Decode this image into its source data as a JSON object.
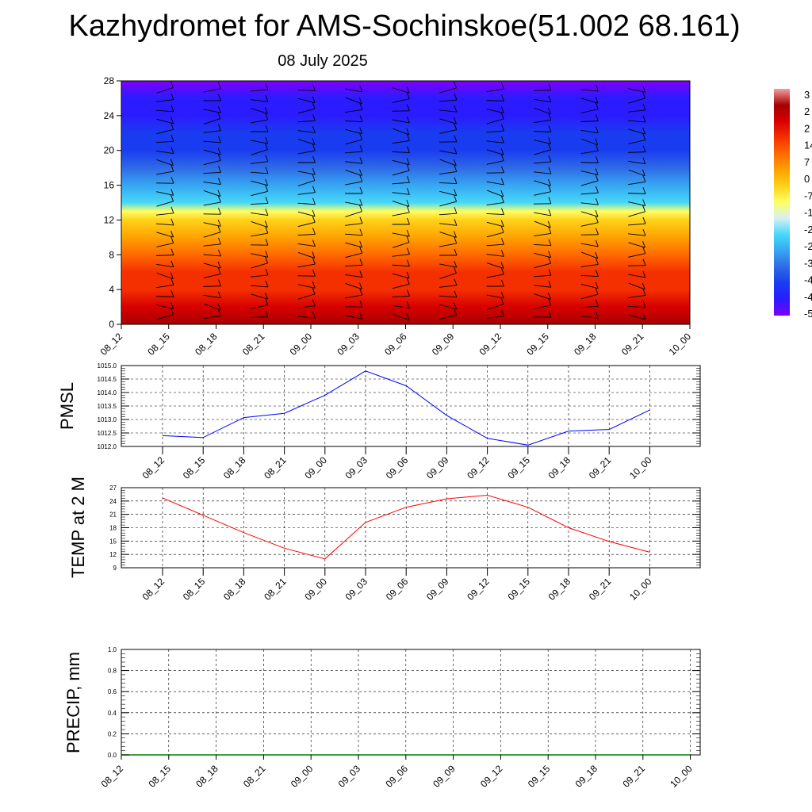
{
  "title": "Kazhydromet for AMS-Sochinskoe(51.002 68.161)",
  "subtitle": "08 July 2025",
  "colors": {
    "pmsl_line": "#0000ff",
    "temp_line": "#ff0000",
    "precip_line": "#008000",
    "wind_barb": "#000000"
  },
  "chart_data": [
    {
      "type": "heatmap",
      "name": "vertical-profile",
      "y_ticks": [
        0,
        4,
        8,
        12,
        16,
        20,
        24,
        28
      ],
      "ylim": [
        0,
        28
      ],
      "x_ticks": [
        "08_12",
        "08_15",
        "08_18",
        "08_21",
        "09_00",
        "09_03",
        "09_06",
        "09_09",
        "09_12",
        "09_15",
        "09_18",
        "09_21",
        "10_00"
      ],
      "colorbar_labels": [
        "3",
        "2",
        "2",
        "14",
        "7",
        "0",
        "-7",
        "-1",
        "-2",
        "-2",
        "-3",
        "-4",
        "-4",
        "-5"
      ],
      "color_scale": [
        "#7f00ff",
        "#2a1cff",
        "#1a3cf0",
        "#2f6ae6",
        "#36a6f2",
        "#46d8f8",
        "#d6f0f4",
        "#ffff66",
        "#ffd21a",
        "#ffa200",
        "#ff6a00",
        "#f53000",
        "#d70000",
        "#a80000",
        "#f0a0a0"
      ],
      "profile": {
        "levels": [
          0,
          2,
          4,
          6,
          8,
          10,
          12,
          13,
          14,
          16,
          18,
          20,
          22,
          24,
          26,
          28
        ],
        "values": [
          31,
          27,
          22,
          17,
          12,
          6,
          0,
          -10,
          -17,
          -25,
          -31,
          -36,
          -40,
          -44,
          -48,
          -52
        ]
      },
      "wind_barbs": "present"
    },
    {
      "type": "line",
      "ylabel": "PMSL",
      "ylim": [
        1012.0,
        1015.0
      ],
      "y_ticks": [
        "1012.0",
        "1012.5",
        "1013.0",
        "1013.5",
        "1014.0",
        "1014.5",
        "1015.0"
      ],
      "x": [
        "08_12",
        "08_15",
        "08_18",
        "08_21",
        "09_00",
        "09_03",
        "09_06",
        "09_09",
        "09_12",
        "09_15",
        "09_18",
        "09_21",
        "10_00"
      ],
      "values": [
        1012.4,
        1012.33,
        1013.07,
        1013.23,
        1013.9,
        1014.8,
        1014.25,
        1013.15,
        1012.3,
        1012.05,
        1012.57,
        1012.63,
        1013.35
      ]
    },
    {
      "type": "line",
      "ylabel": "TEMP at 2 M",
      "ylim": [
        9,
        27
      ],
      "y_ticks": [
        "9",
        "12",
        "15",
        "18",
        "21",
        "24",
        "27"
      ],
      "x": [
        "08_12",
        "08_15",
        "08_18",
        "08_21",
        "09_00",
        "09_03",
        "09_06",
        "09_09",
        "09_12",
        "09_15",
        "09_18",
        "09_21",
        "10_00"
      ],
      "values": [
        24.7,
        20.8,
        16.9,
        13.4,
        11.0,
        19.2,
        22.6,
        24.5,
        25.3,
        22.6,
        18.0,
        14.9,
        12.5
      ]
    },
    {
      "type": "line",
      "ylabel": "PRECIP, mm",
      "ylim": [
        0.0,
        1.0
      ],
      "y_ticks": [
        "0.0",
        "0.2",
        "0.4",
        "0.6",
        "0.8",
        "1.0"
      ],
      "x_ticks": [
        "08_12",
        "08_15",
        "08_18",
        "08_21",
        "09_00",
        "09_03",
        "09_06",
        "09_09",
        "09_12",
        "09_15",
        "09_18",
        "09_21",
        "10_00"
      ],
      "values": [
        0,
        0,
        0,
        0,
        0,
        0,
        0,
        0,
        0,
        0,
        0,
        0,
        0
      ]
    }
  ]
}
